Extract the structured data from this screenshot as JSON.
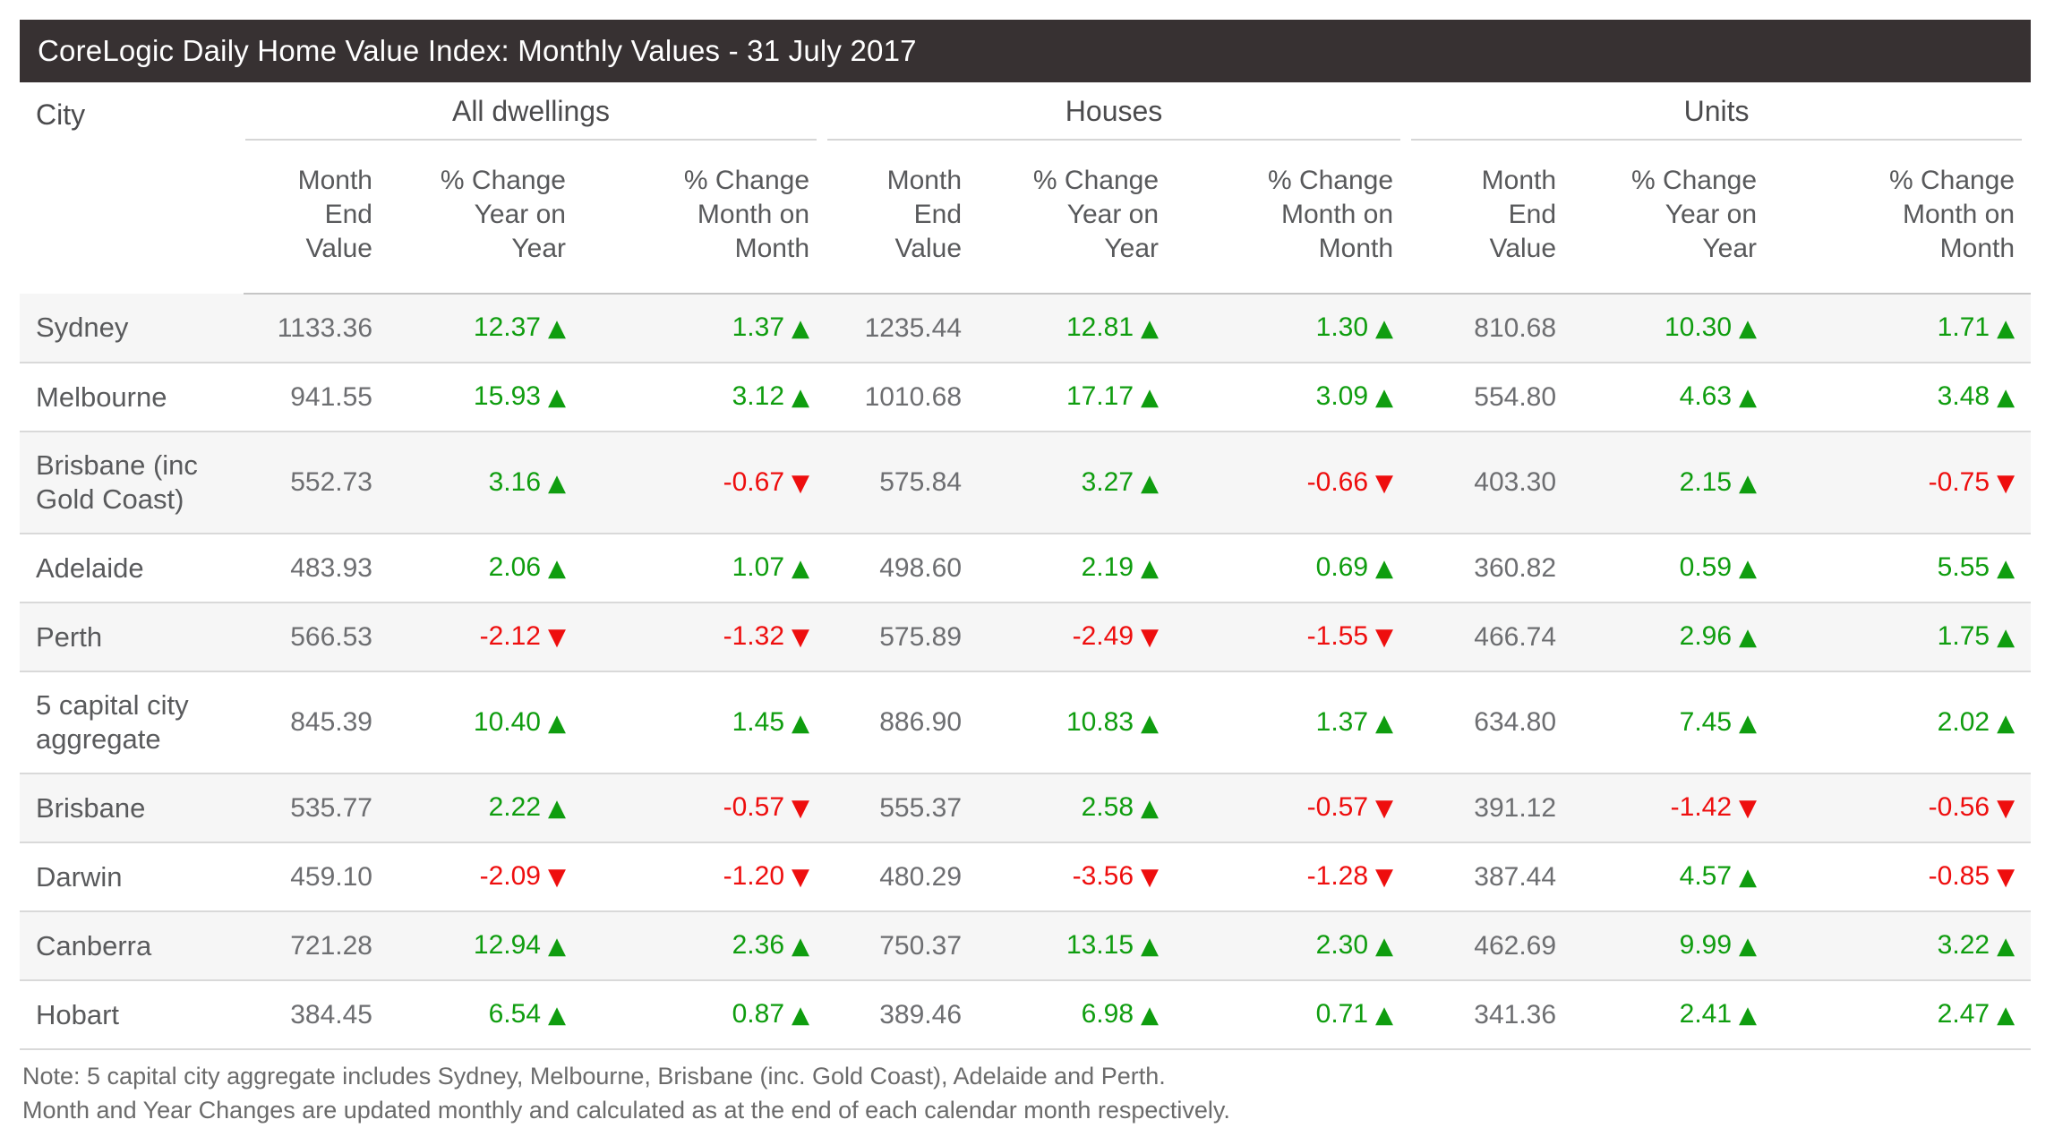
{
  "title": "CoreLogic Daily Home Value Index: Monthly Values - 31 July 2017",
  "table": {
    "city_label": "City",
    "groups": [
      {
        "label": "All dwellings"
      },
      {
        "label": "Houses"
      },
      {
        "label": "Units"
      }
    ],
    "sub_headers": [
      "Month\nEnd\nValue",
      "% Change\nYear on\nYear",
      "% Change\nMonth on\nMonth"
    ]
  },
  "notes": [
    "Note: 5 capital city aggregate includes Sydney, Melbourne, Brisbane (inc. Gold Coast), Adelaide and Perth.",
    "Month and Year Changes are updated monthly and calculated as at the end of each calendar month respectively."
  ],
  "icons": {
    "up_arrow": "▲",
    "down_arrow": "▼"
  },
  "colors": {
    "positive": "#0f9d0f",
    "negative": "#ee0e0e",
    "title_bar_bg": "#373132",
    "title_bar_text": "#ffffff",
    "row_alt_bg": "#f6f6f6"
  },
  "chart_data": {
    "type": "table",
    "title": "CoreLogic Daily Home Value Index: Monthly Values - 31 July 2017",
    "column_groups": [
      "All dwellings",
      "Houses",
      "Units"
    ],
    "columns_per_group": [
      "Month End Value",
      "% Change Year on Year",
      "% Change Month on Month"
    ],
    "rows": [
      {
        "city": "Sydney",
        "all_dwellings": [
          1133.36,
          12.37,
          1.37
        ],
        "houses": [
          1235.44,
          12.81,
          1.3
        ],
        "units": [
          810.68,
          10.3,
          1.71
        ]
      },
      {
        "city": "Melbourne",
        "all_dwellings": [
          941.55,
          15.93,
          3.12
        ],
        "houses": [
          1010.68,
          17.17,
          3.09
        ],
        "units": [
          554.8,
          4.63,
          3.48
        ]
      },
      {
        "city": "Brisbane (inc Gold Coast)",
        "all_dwellings": [
          552.73,
          3.16,
          -0.67
        ],
        "houses": [
          575.84,
          3.27,
          -0.66
        ],
        "units": [
          403.3,
          2.15,
          -0.75
        ]
      },
      {
        "city": "Adelaide",
        "all_dwellings": [
          483.93,
          2.06,
          1.07
        ],
        "houses": [
          498.6,
          2.19,
          0.69
        ],
        "units": [
          360.82,
          0.59,
          5.55
        ]
      },
      {
        "city": "Perth",
        "all_dwellings": [
          566.53,
          -2.12,
          -1.32
        ],
        "houses": [
          575.89,
          -2.49,
          -1.55
        ],
        "units": [
          466.74,
          2.96,
          1.75
        ]
      },
      {
        "city": "5 capital city aggregate",
        "all_dwellings": [
          845.39,
          10.4,
          1.45
        ],
        "houses": [
          886.9,
          10.83,
          1.37
        ],
        "units": [
          634.8,
          7.45,
          2.02
        ]
      },
      {
        "city": "Brisbane",
        "all_dwellings": [
          535.77,
          2.22,
          -0.57
        ],
        "houses": [
          555.37,
          2.58,
          -0.57
        ],
        "units": [
          391.12,
          -1.42,
          -0.56
        ]
      },
      {
        "city": "Darwin",
        "all_dwellings": [
          459.1,
          -2.09,
          -1.2
        ],
        "houses": [
          480.29,
          -3.56,
          -1.28
        ],
        "units": [
          387.44,
          4.57,
          -0.85
        ]
      },
      {
        "city": "Canberra",
        "all_dwellings": [
          721.28,
          12.94,
          2.36
        ],
        "houses": [
          750.37,
          13.15,
          2.3
        ],
        "units": [
          462.69,
          9.99,
          3.22
        ]
      },
      {
        "city": "Hobart",
        "all_dwellings": [
          384.45,
          6.54,
          0.87
        ],
        "houses": [
          389.46,
          6.98,
          0.71
        ],
        "units": [
          341.36,
          2.41,
          2.47
        ]
      }
    ]
  }
}
